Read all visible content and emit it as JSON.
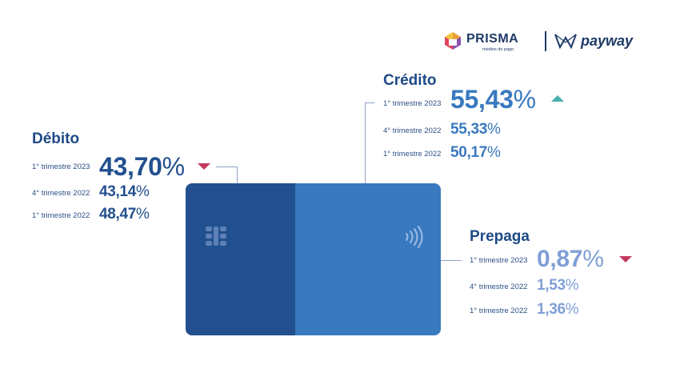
{
  "brand": {
    "prisma_name": "PRISMA",
    "prisma_tagline": "medios de pago",
    "payway_name": "payway"
  },
  "debito": {
    "heading": "Débito",
    "rows": [
      {
        "period": "1° trimestre 2023",
        "value": "43,70",
        "unit": "%"
      },
      {
        "period": "4° trimestre 2022",
        "value": "43,14",
        "unit": "%"
      },
      {
        "period": "1° trimestre 2022",
        "value": "48,47",
        "unit": "%"
      }
    ],
    "trend": "down",
    "trend_icon": "triangle-down"
  },
  "credito": {
    "heading": "Crédito",
    "rows": [
      {
        "period": "1° trimestre 2023",
        "value": "55,43",
        "unit": "%"
      },
      {
        "period": "4° trimestre 2022",
        "value": "55,33",
        "unit": "%"
      },
      {
        "period": "1° trimestre 2022",
        "value": "50,17",
        "unit": "%"
      }
    ],
    "trend": "up",
    "trend_icon": "triangle-up"
  },
  "prepaga": {
    "heading": "Prepaga",
    "rows": [
      {
        "period": "1° trimestre 2023",
        "value": "0,87",
        "unit": "%"
      },
      {
        "period": "4° trimestre 2022",
        "value": "1,53",
        "unit": "%"
      },
      {
        "period": "1° trimestre 2022",
        "value": "1,36",
        "unit": "%"
      }
    ],
    "trend": "down",
    "trend_icon": "triangle-down"
  },
  "colors": {
    "debito": "#22508f",
    "credito": "#3979bf",
    "prepaga": "#7f9fd6",
    "down": "#c33a5e",
    "up": "#4aaeae"
  }
}
